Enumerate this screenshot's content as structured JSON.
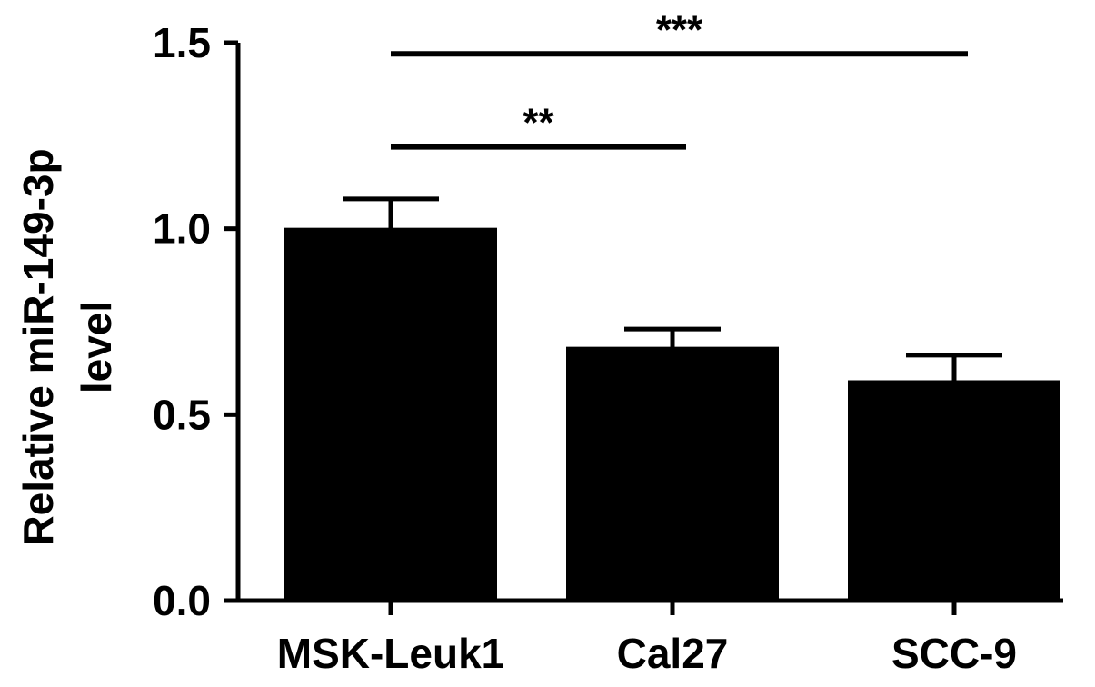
{
  "chart_data": {
    "type": "bar",
    "ylabel_lines": [
      "Relative miR-149-3p",
      "level"
    ],
    "categories": [
      "MSK-Leuk1",
      "Cal27",
      "SCC-9"
    ],
    "values": [
      1.0,
      0.68,
      0.59
    ],
    "errors": [
      0.08,
      0.05,
      0.07
    ],
    "ylim": [
      0.0,
      1.5
    ],
    "yticks": [
      0.0,
      0.5,
      1.0,
      1.5
    ],
    "ytick_labels": [
      "0.0",
      "0.5",
      "1.0",
      "1.5"
    ],
    "bar_color": "#000000",
    "significance": [
      {
        "from": 0,
        "to": 1,
        "label": "**",
        "y": 1.22
      },
      {
        "from": 0,
        "to": 2,
        "label": "***",
        "y": 1.47
      }
    ],
    "grid": false,
    "legend": "none"
  }
}
